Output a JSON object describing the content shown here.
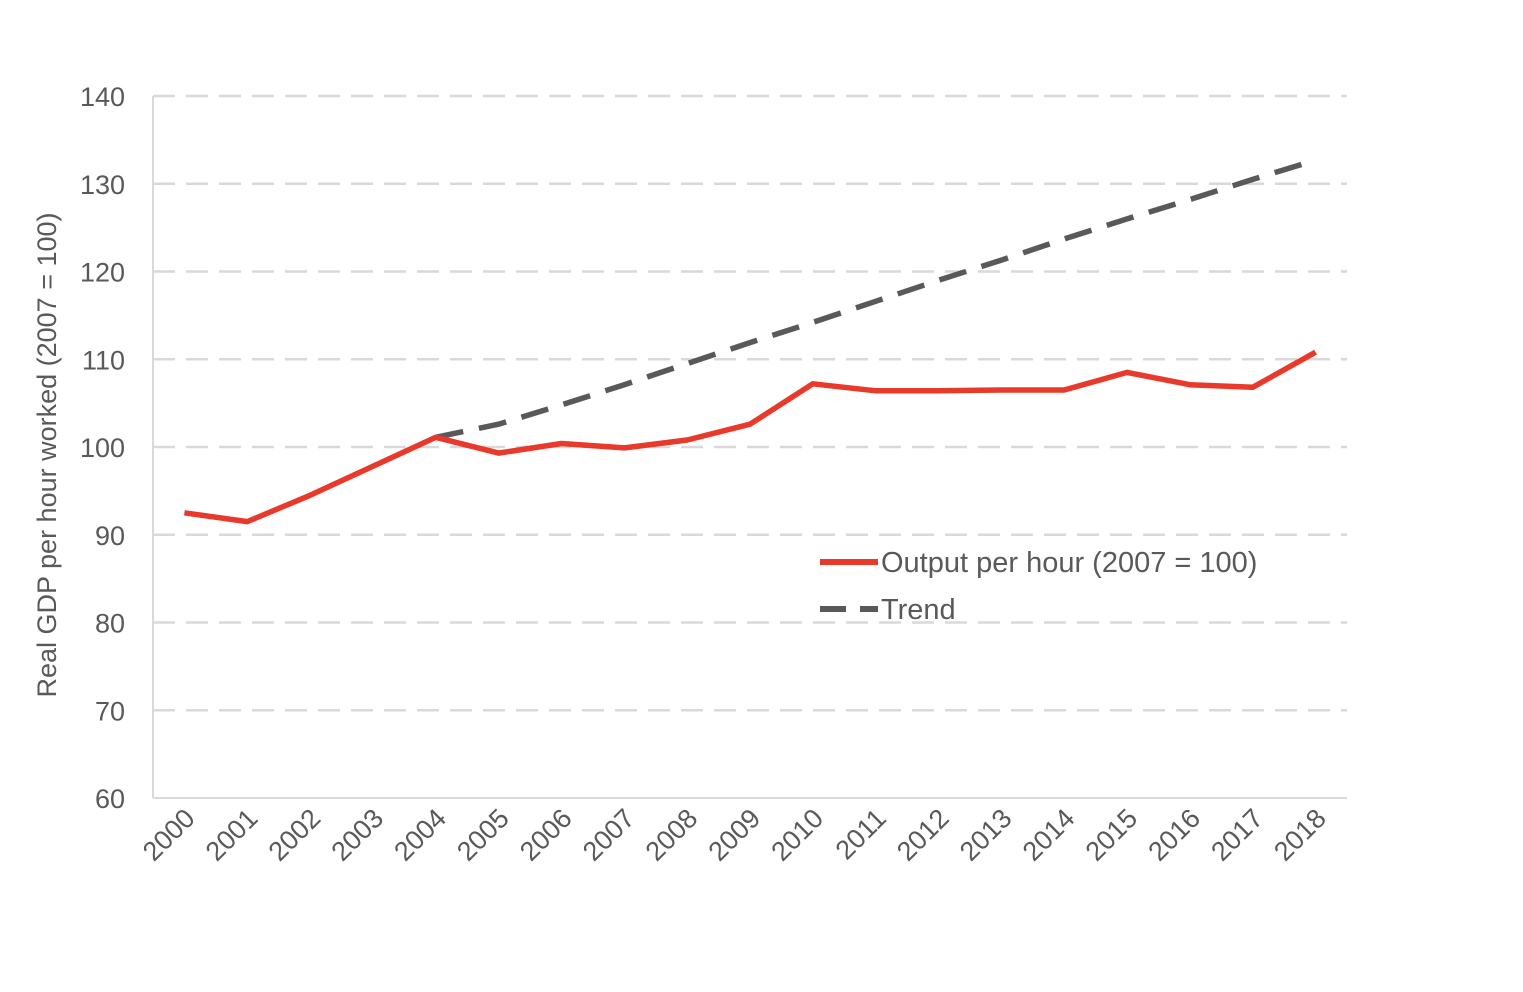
{
  "chart_data": {
    "type": "line",
    "title": "",
    "ylabel": "Real GDP per hour worked (2007 = 100)",
    "xlabel": "",
    "ylim": [
      60,
      140
    ],
    "yticks": [
      60,
      70,
      80,
      90,
      100,
      110,
      120,
      130,
      140
    ],
    "grid": true,
    "legend_position": "right-center",
    "categories": [
      "2000",
      "2001",
      "2002",
      "2003",
      "2004",
      "2005",
      "2006",
      "2007",
      "2008",
      "2009",
      "2010",
      "2011",
      "2012",
      "2013",
      "2014",
      "2015",
      "2016",
      "2017",
      "2018"
    ],
    "series": [
      {
        "name": "Output per hour (2007 = 100)",
        "color": "#e8392a",
        "style": "solid",
        "values": [
          92.5,
          91.5,
          94.5,
          97.8,
          101.1,
          99.3,
          100.4,
          99.9,
          100.8,
          102.6,
          107.2,
          106.4,
          106.4,
          106.5,
          106.5,
          108.5,
          107.1,
          106.8,
          110.8
        ]
      },
      {
        "name": "Trend",
        "color": "#595959",
        "style": "dashed",
        "values": [
          null,
          null,
          null,
          null,
          101.1,
          102.6,
          104.8,
          107.1,
          109.5,
          111.9,
          114.2,
          116.6,
          119.0,
          121.3,
          123.7,
          126.0,
          128.2,
          130.5,
          132.7
        ]
      }
    ]
  }
}
